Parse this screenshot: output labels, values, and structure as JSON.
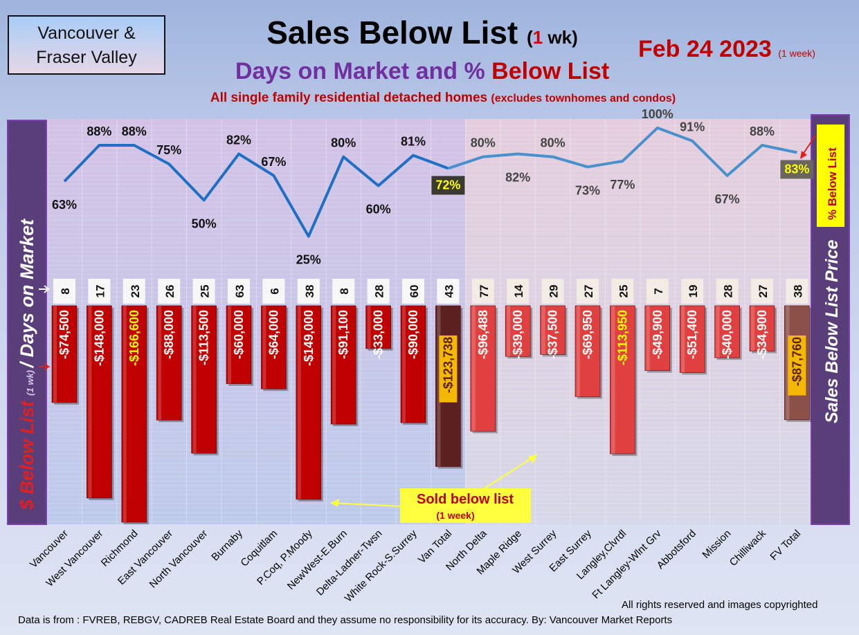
{
  "header": {
    "region_line1": "Vancouver &",
    "region_line2": "Fraser Valley",
    "title_main": "Sales Below List",
    "title_paren_open": "(",
    "title_paren_num": "1",
    "title_paren_close": " wk)",
    "subtitle_main": "Days on Market and % ",
    "subtitle_red": "Below List",
    "scope_main": "All single family residential detached homes",
    "scope_small": "(excludes townhomes and condos)",
    "date": "Feb 24  2023",
    "date_note": "(1 week)"
  },
  "footer": {
    "copyright": "All rights reserved and  images copyrighted",
    "source": "Data is from : FVREB, REBGV, CADREB Real Estate Board and they assume no responsibility for its accuracy. By: Vancouver Market Reports"
  },
  "chart_data": {
    "type": "bar",
    "categories": [
      "Vancouver",
      "West Vancouver",
      "Richmond",
      "East Vancouver",
      "North Vancouver",
      "Burnaby",
      "Coquitlam",
      "P.Coq, P.Moody",
      "NewWest-E.Burn",
      "Delta-Ladner-Twsn",
      "White Rock-S.Surrey",
      "Van Total",
      "North Delta",
      "Maple Ridge",
      "West Surrey",
      "East Surrey",
      "Langley,Clvrdl",
      "Ft Langley-Wlnt Grv",
      "Abbotsford",
      "Mission",
      "Chilliwack",
      "FV Total"
    ],
    "series": [
      {
        "name": "$ Below List",
        "type": "bar",
        "values": [
          -74500,
          -148000,
          -166600,
          -88000,
          -113500,
          -60000,
          -64000,
          -149000,
          -91100,
          -33000,
          -90000,
          -123738,
          -96488,
          -39000,
          -37500,
          -69950,
          -113950,
          -49900,
          -51400,
          -40000,
          -34900,
          -87760
        ],
        "labels": [
          "-$74,500",
          "-$148,000",
          "-$166,600",
          "-$88,000",
          "-$113,500",
          "-$60,000",
          "-$64,000",
          "-$149,000",
          "-$91,100",
          "-$33,000",
          "-$90,000",
          "-$123,738",
          "-$96,488",
          "-$39,000",
          "-$37,500",
          "-$69,950",
          "-$113,950",
          "-$49,900",
          "-$51,400",
          "-$40,000",
          "-$34,900",
          "-$87,760"
        ]
      },
      {
        "name": "% Below List",
        "type": "line",
        "values": [
          63,
          88,
          88,
          75,
          50,
          82,
          67,
          25,
          80,
          60,
          81,
          72,
          80,
          82,
          80,
          73,
          77,
          100,
          91,
          67,
          88,
          83
        ],
        "labels": [
          "63%",
          "88%",
          "88%",
          "75%",
          "50%",
          "82%",
          "67%",
          "25%",
          "80%",
          "60%",
          "81%",
          "72%",
          "80%",
          "82%",
          "80%",
          "73%",
          "77%",
          "100%",
          "91%",
          "67%",
          "88%",
          "83%"
        ]
      },
      {
        "name": "Days on Market",
        "type": "label",
        "values": [
          8,
          17,
          23,
          26,
          25,
          63,
          6,
          38,
          8,
          28,
          60,
          43,
          77,
          14,
          29,
          27,
          25,
          7,
          19,
          28,
          27,
          38
        ]
      }
    ],
    "ylabel_left_part1": "$ Below List",
    "ylabel_left_part2": "(1 wk)",
    "ylabel_left_part3": "/ Days on Market",
    "ylabel_right": "Sales Below List Price",
    "pct_legend": "% Below List",
    "callout_line1": "Sold below list",
    "callout_line2": "(1 week)",
    "colors": {
      "van_bar": "#c00000",
      "fv_bar": "#e04040",
      "van_total_bar": "#5c2020",
      "fv_total_bar": "#8b5048",
      "van_line": "#1f6fc5",
      "fv_line": "#4a90cc",
      "highlight_label": "#ffff00",
      "callout_bg": "#ffff40"
    }
  }
}
